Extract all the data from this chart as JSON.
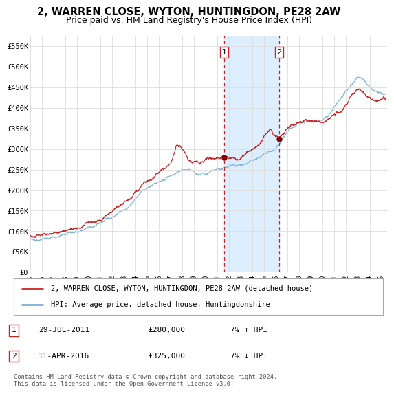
{
  "title": "2, WARREN CLOSE, WYTON, HUNTINGDON, PE28 2AW",
  "subtitle": "Price paid vs. HM Land Registry's House Price Index (HPI)",
  "title_fontsize": 10.5,
  "subtitle_fontsize": 9,
  "ylabel_ticks": [
    "£0",
    "£50K",
    "£100K",
    "£150K",
    "£200K",
    "£250K",
    "£300K",
    "£350K",
    "£400K",
    "£450K",
    "£500K",
    "£550K"
  ],
  "ytick_values": [
    0,
    50000,
    100000,
    150000,
    200000,
    250000,
    300000,
    350000,
    400000,
    450000,
    500000,
    550000
  ],
  "ylim": [
    0,
    575000
  ],
  "xlim_start": 1995.0,
  "xlim_end": 2025.5,
  "marker1_x": 2011.58,
  "marker1_y": 280000,
  "marker2_x": 2016.28,
  "marker2_y": 325000,
  "shade_color": "#ddeeff",
  "hpi_line_color": "#7ab0d8",
  "price_line_color": "#cc2222",
  "marker_color": "#8b0000",
  "dashed_line_color": "#cc2222",
  "grid_color": "#dddddd",
  "background_color": "#ffffff",
  "legend_entry1": "2, WARREN CLOSE, WYTON, HUNTINGDON, PE28 2AW (detached house)",
  "legend_entry2": "HPI: Average price, detached house, Huntingdonshire",
  "table_row1": [
    "1",
    "29-JUL-2011",
    "£280,000",
    "7% ↑ HPI"
  ],
  "table_row2": [
    "2",
    "11-APR-2016",
    "£325,000",
    "7% ↓ HPI"
  ],
  "footnote": "Contains HM Land Registry data © Crown copyright and database right 2024.\nThis data is licensed under the Open Government Licence v3.0.",
  "xtick_years": [
    1995,
    1996,
    1997,
    1998,
    1999,
    2000,
    2001,
    2002,
    2003,
    2004,
    2005,
    2006,
    2007,
    2008,
    2009,
    2010,
    2011,
    2012,
    2013,
    2014,
    2015,
    2016,
    2017,
    2018,
    2019,
    2020,
    2021,
    2022,
    2023,
    2024,
    2025
  ]
}
